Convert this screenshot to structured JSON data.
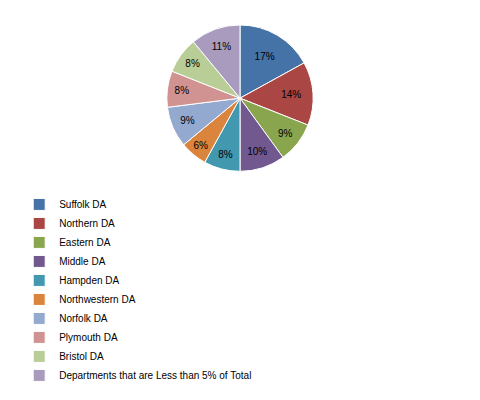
{
  "chart_data": {
    "type": "pie",
    "categories": [
      "Suffolk DA",
      "Northern DA",
      "Eastern DA",
      "Middle DA",
      "Hampden DA",
      "Northwestern DA",
      "Norfolk DA",
      "Plymouth DA",
      "Bristol DA",
      "Departments that are Less than 5% of Total"
    ],
    "values": [
      17,
      14,
      9,
      10,
      8,
      6,
      9,
      8,
      8,
      11
    ],
    "value_labels": [
      "17%",
      "14%",
      "9%",
      "10%",
      "8%",
      "6%",
      "9%",
      "8%",
      "8%",
      "11%"
    ],
    "colors": [
      "#4572A7",
      "#AA4643",
      "#89A54E",
      "#71588F",
      "#4198AF",
      "#DB843D",
      "#93A9CF",
      "#D19392",
      "#B9CD96",
      "#A99BBD"
    ],
    "data_labels": true,
    "legend": "bottom"
  }
}
